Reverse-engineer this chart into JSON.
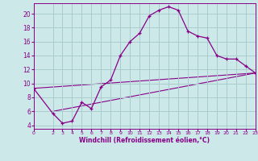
{
  "bg_color": "#cce8e8",
  "line_color": "#880088",
  "grid_color": "#aacccc",
  "xlabel": "Windchill (Refroidissement éolien,°C)",
  "xlabel_color": "#880088",
  "tick_color": "#880088",
  "xlim": [
    0,
    23
  ],
  "ylim": [
    3.5,
    21.5
  ],
  "yticks": [
    4,
    6,
    8,
    10,
    12,
    14,
    16,
    18,
    20
  ],
  "xticks": [
    0,
    2,
    3,
    4,
    5,
    6,
    7,
    8,
    9,
    10,
    11,
    12,
    13,
    14,
    15,
    16,
    17,
    18,
    19,
    20,
    21,
    22,
    23
  ],
  "line1_x": [
    0,
    2,
    3,
    4,
    5,
    6,
    7,
    8,
    9,
    10,
    11,
    12,
    13,
    14,
    15,
    16,
    17,
    18,
    19,
    20,
    21,
    22,
    23
  ],
  "line1_y": [
    9.3,
    5.7,
    4.3,
    4.6,
    7.3,
    6.4,
    9.5,
    10.5,
    14.0,
    16.0,
    17.2,
    19.7,
    20.5,
    21.0,
    20.5,
    17.5,
    16.8,
    16.5,
    14.0,
    13.5,
    13.5,
    12.5,
    11.5
  ],
  "line2_x": [
    0,
    2,
    23
  ],
  "line2_y": [
    9.3,
    7.8,
    11.5
  ],
  "line3_x": [
    0,
    2,
    23
  ],
  "line3_y": [
    9.3,
    6.0,
    11.5
  ]
}
